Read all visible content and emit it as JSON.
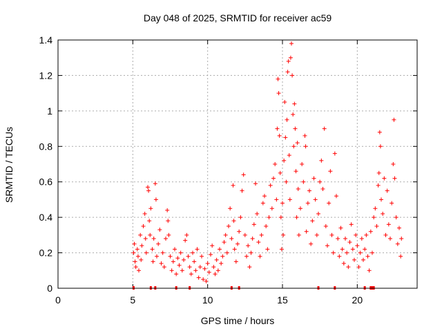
{
  "chart_data": {
    "type": "scatter",
    "title": "Day 048 of 2025, SRMTID for receiver ac59",
    "xlabel": "GPS time / hours",
    "ylabel": "SRMTID / TECUs",
    "xlim": [
      0,
      24
    ],
    "ylim": [
      0,
      1.4
    ],
    "x_ticks": [
      0,
      5,
      10,
      15,
      20
    ],
    "y_ticks": [
      0,
      0.2,
      0.4,
      0.6,
      0.8,
      1,
      1.2,
      1.4
    ],
    "grid": true,
    "marker": "+",
    "series_color": "#ff0000",
    "series": [
      {
        "name": "SRMTID",
        "points": [
          [
            5.05,
            0.2
          ],
          [
            5.1,
            0.25
          ],
          [
            5.15,
            0.15
          ],
          [
            5.2,
            0.12
          ],
          [
            5.3,
            0.22
          ],
          [
            5.35,
            0.18
          ],
          [
            5.4,
            0.1
          ],
          [
            5.5,
            0.3
          ],
          [
            5.55,
            0.16
          ],
          [
            5.6,
            0.24
          ],
          [
            5.7,
            0.35
          ],
          [
            5.8,
            0.42
          ],
          [
            5.85,
            0.28
          ],
          [
            5.9,
            0.2
          ],
          [
            6.0,
            0.57
          ],
          [
            6.05,
            0.55
          ],
          [
            6.1,
            0.38
          ],
          [
            6.15,
            0.3
          ],
          [
            6.2,
            0.45
          ],
          [
            6.3,
            0.22
          ],
          [
            6.35,
            0.15
          ],
          [
            6.4,
            0.28
          ],
          [
            6.5,
            0.59
          ],
          [
            6.55,
            0.5
          ],
          [
            6.6,
            0.18
          ],
          [
            6.7,
            0.25
          ],
          [
            6.8,
            0.33
          ],
          [
            6.9,
            0.14
          ],
          [
            7.0,
            0.2
          ],
          [
            7.1,
            0.12
          ],
          [
            7.2,
            0.28
          ],
          [
            7.3,
            0.44
          ],
          [
            7.35,
            0.38
          ],
          [
            7.4,
            0.3
          ],
          [
            7.5,
            0.18
          ],
          [
            7.6,
            0.1
          ],
          [
            7.7,
            0.15
          ],
          [
            7.8,
            0.22
          ],
          [
            7.9,
            0.08
          ],
          [
            8.0,
            0.17
          ],
          [
            8.1,
            0.13
          ],
          [
            8.2,
            0.2
          ],
          [
            8.3,
            0.1
          ],
          [
            8.4,
            0.16
          ],
          [
            8.5,
            0.27
          ],
          [
            8.6,
            0.3
          ],
          [
            8.7,
            0.18
          ],
          [
            8.8,
            0.12
          ],
          [
            8.9,
            0.08
          ],
          [
            9.0,
            0.2
          ],
          [
            9.1,
            0.15
          ],
          [
            9.2,
            0.1
          ],
          [
            9.3,
            0.22
          ],
          [
            9.4,
            0.06
          ],
          [
            9.5,
            0.12
          ],
          [
            9.6,
            0.18
          ],
          [
            9.7,
            0.05
          ],
          [
            9.8,
            0.11
          ],
          [
            9.9,
            0.04
          ],
          [
            10.0,
            0.14
          ],
          [
            10.1,
            0.09
          ],
          [
            10.2,
            0.19
          ],
          [
            10.3,
            0.24
          ],
          [
            10.4,
            0.12
          ],
          [
            10.5,
            0.08
          ],
          [
            10.6,
            0.16
          ],
          [
            10.7,
            0.1
          ],
          [
            10.8,
            0.22
          ],
          [
            10.9,
            0.14
          ],
          [
            11.0,
            0.18
          ],
          [
            11.1,
            0.26
          ],
          [
            11.2,
            0.3
          ],
          [
            11.3,
            0.2
          ],
          [
            11.4,
            0.35
          ],
          [
            11.5,
            0.45
          ],
          [
            11.6,
            0.28
          ],
          [
            11.7,
            0.58
          ],
          [
            11.75,
            0.38
          ],
          [
            11.8,
            0.22
          ],
          [
            11.9,
            0.15
          ],
          [
            12.0,
            0.25
          ],
          [
            12.1,
            0.32
          ],
          [
            12.2,
            0.4
          ],
          [
            12.3,
            0.55
          ],
          [
            12.4,
            0.64
          ],
          [
            12.5,
            0.3
          ],
          [
            12.6,
            0.18
          ],
          [
            12.7,
            0.24
          ],
          [
            12.8,
            0.12
          ],
          [
            12.9,
            0.2
          ],
          [
            13.0,
            0.28
          ],
          [
            13.1,
            0.36
          ],
          [
            13.2,
            0.59
          ],
          [
            13.3,
            0.42
          ],
          [
            13.4,
            0.26
          ],
          [
            13.5,
            0.18
          ],
          [
            13.6,
            0.3
          ],
          [
            13.7,
            0.48
          ],
          [
            13.8,
            0.52
          ],
          [
            13.9,
            0.35
          ],
          [
            14.0,
            0.22
          ],
          [
            14.1,
            0.4
          ],
          [
            14.2,
            0.58
          ],
          [
            14.3,
            0.45
          ],
          [
            14.4,
            0.62
          ],
          [
            14.5,
            0.7
          ],
          [
            14.6,
            0.5
          ],
          [
            14.65,
            0.9
          ],
          [
            14.7,
            1.18
          ],
          [
            14.75,
            1.1
          ],
          [
            14.8,
            0.86
          ],
          [
            14.85,
            0.65
          ],
          [
            14.9,
            0.4
          ],
          [
            14.95,
            0.22
          ],
          [
            15.0,
            0.48
          ],
          [
            15.05,
            0.3
          ],
          [
            15.1,
            0.72
          ],
          [
            15.15,
            1.05
          ],
          [
            15.2,
            0.85
          ],
          [
            15.25,
            0.6
          ],
          [
            15.3,
            0.95
          ],
          [
            15.35,
            1.22
          ],
          [
            15.4,
            1.28
          ],
          [
            15.45,
            0.75
          ],
          [
            15.5,
            0.5
          ],
          [
            15.55,
            1.3
          ],
          [
            15.6,
            1.38
          ],
          [
            15.65,
            1.2
          ],
          [
            15.7,
            0.98
          ],
          [
            15.75,
            0.8
          ],
          [
            15.8,
            1.04
          ],
          [
            15.85,
            0.9
          ],
          [
            15.9,
            0.66
          ],
          [
            15.95,
            0.4
          ],
          [
            16.0,
            0.82
          ],
          [
            16.05,
            0.56
          ],
          [
            16.1,
            0.3
          ],
          [
            16.2,
            0.45
          ],
          [
            16.3,
            0.7
          ],
          [
            16.4,
            0.6
          ],
          [
            16.5,
            0.86
          ],
          [
            16.55,
            0.8
          ],
          [
            16.6,
            0.32
          ],
          [
            16.7,
            0.48
          ],
          [
            16.8,
            0.55
          ],
          [
            16.9,
            0.25
          ],
          [
            17.0,
            0.38
          ],
          [
            17.1,
            0.62
          ],
          [
            17.2,
            0.5
          ],
          [
            17.3,
            0.3
          ],
          [
            17.4,
            0.42
          ],
          [
            17.5,
            0.6
          ],
          [
            17.6,
            0.72
          ],
          [
            17.7,
            0.56
          ],
          [
            17.8,
            0.9
          ],
          [
            17.9,
            0.35
          ],
          [
            18.0,
            0.24
          ],
          [
            18.1,
            0.48
          ],
          [
            18.2,
            0.66
          ],
          [
            18.3,
            0.3
          ],
          [
            18.4,
            0.2
          ],
          [
            18.5,
            0.76
          ],
          [
            18.6,
            0.52
          ],
          [
            18.7,
            0.28
          ],
          [
            18.8,
            0.18
          ],
          [
            18.9,
            0.34
          ],
          [
            19.0,
            0.22
          ],
          [
            19.1,
            0.14
          ],
          [
            19.2,
            0.28
          ],
          [
            19.3,
            0.2
          ],
          [
            19.4,
            0.12
          ],
          [
            19.5,
            0.26
          ],
          [
            19.6,
            0.36
          ],
          [
            19.7,
            0.22
          ],
          [
            19.8,
            0.16
          ],
          [
            19.9,
            0.3
          ],
          [
            20.0,
            0.24
          ],
          [
            20.1,
            0.12
          ],
          [
            20.2,
            0.2
          ],
          [
            20.3,
            0.28
          ],
          [
            20.4,
            0.16
          ],
          [
            20.5,
            0.22
          ],
          [
            20.6,
            0.3
          ],
          [
            20.7,
            0.18
          ],
          [
            20.8,
            0.1
          ],
          [
            20.9,
            0.32
          ],
          [
            21.0,
            0.2
          ],
          [
            21.1,
            0.4
          ],
          [
            21.2,
            0.45
          ],
          [
            21.3,
            0.35
          ],
          [
            21.4,
            0.58
          ],
          [
            21.45,
            0.65
          ],
          [
            21.5,
            0.88
          ],
          [
            21.55,
            0.8
          ],
          [
            21.6,
            0.5
          ],
          [
            21.7,
            0.42
          ],
          [
            21.8,
            0.62
          ],
          [
            21.9,
            0.3
          ],
          [
            22.0,
            0.55
          ],
          [
            22.1,
            0.36
          ],
          [
            22.2,
            0.28
          ],
          [
            22.3,
            0.48
          ],
          [
            22.4,
            0.7
          ],
          [
            22.45,
            0.95
          ],
          [
            22.5,
            0.62
          ],
          [
            22.6,
            0.4
          ],
          [
            22.7,
            0.25
          ],
          [
            22.8,
            0.34
          ],
          [
            22.9,
            0.18
          ],
          [
            22.95,
            0.28
          ]
        ]
      }
    ],
    "bottom_markers_x": [
      5.05,
      6.2,
      6.5,
      7.9,
      8.8,
      11.6,
      12.1,
      17.4,
      18.5,
      20.5,
      20.9,
      21.0,
      21.1
    ]
  }
}
